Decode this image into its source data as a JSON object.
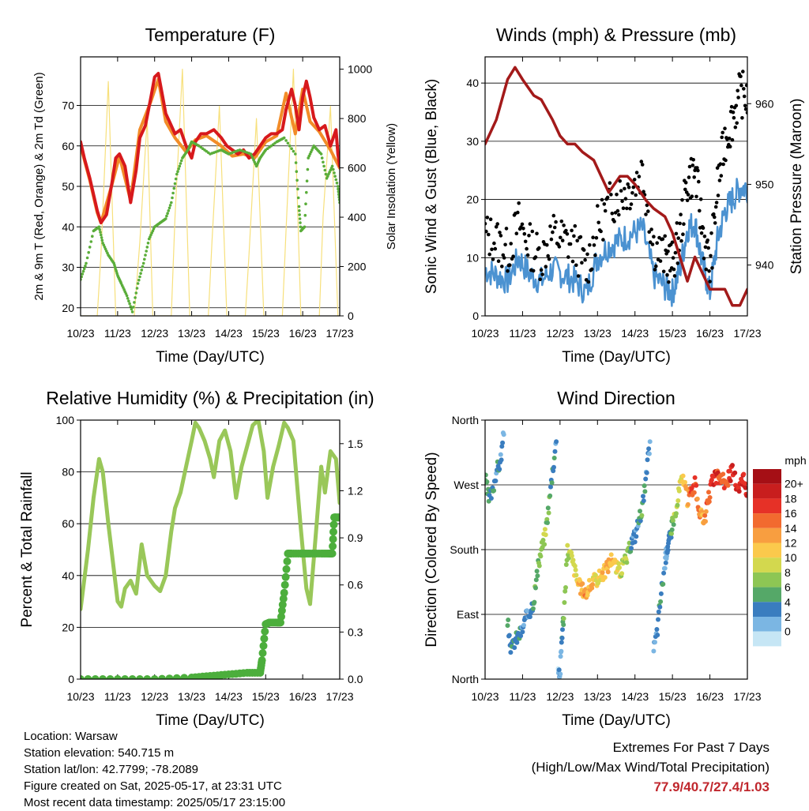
{
  "colors": {
    "t2m": "#d7191c",
    "t9m": "#f28c28",
    "td": "#5aad3a",
    "solar": "#f7e07c",
    "gust": "#000000",
    "wind": "#4b92d1",
    "pressure": "#a31a1a",
    "rh": "#99c759",
    "precip": "#4cae3c",
    "extremes": "#c0272d"
  },
  "info": {
    "location": "Location: Warsaw",
    "elevation": "Station elevation: 540.715 m",
    "latlon": "Station lat/lon: 42.7799; -78.2089",
    "created": "Figure created on Sat, 2025-05-17, at 23:31 UTC",
    "recent": "Most recent data timestamp: 2025/05/17 23:15:00"
  },
  "extremes": {
    "line1": "Extremes For Past 7 Days",
    "line2": "(High/Low/Max Wind/Total Precipitation)",
    "values": "77.9/40.7/27.4/1.03"
  },
  "chart_data": [
    {
      "type": "line",
      "title": "Temperature (F)",
      "xlabel": "Time (Day/UTC)",
      "ylabel": "2m & 9m T (Red, Orange) & 2m Td (Green)",
      "ylabel_right": "Solar Insolation (Yellow)",
      "x_ticks": [
        "10/23",
        "11/23",
        "12/23",
        "13/23",
        "14/23",
        "15/23",
        "16/23",
        "17/23"
      ],
      "ylim": [
        18,
        82
      ],
      "y_ticks": [
        20,
        30,
        40,
        50,
        60,
        70
      ],
      "ylim_right": [
        0,
        1050
      ],
      "y_ticks_right": [
        0,
        200,
        400,
        600,
        800,
        1000
      ],
      "grid": true,
      "series": [
        {
          "name": "2m T",
          "axis": "left",
          "style": "thick",
          "x": [
            0,
            0.1,
            0.25,
            0.45,
            0.55,
            0.7,
            0.85,
            0.95,
            1.05,
            1.2,
            1.35,
            1.5,
            1.6,
            1.75,
            1.9,
            2.0,
            2.1,
            2.2,
            2.3,
            2.4,
            2.55,
            2.7,
            2.85,
            3.0,
            3.1,
            3.25,
            3.4,
            3.6,
            3.8,
            3.95,
            4.1,
            4.25,
            4.4,
            4.55,
            4.7,
            4.85,
            5.0,
            5.15,
            5.3,
            5.45,
            5.55,
            5.7,
            5.8,
            5.9,
            6.0,
            6.1,
            6.2,
            6.3,
            6.45,
            6.6,
            6.75,
            6.9,
            6.95,
            7.0
          ],
          "y": [
            61,
            57,
            52,
            44,
            41,
            43,
            51,
            57,
            58,
            55,
            46,
            54,
            62,
            65,
            72,
            77,
            77.9,
            73,
            68,
            66,
            63,
            64,
            60,
            57,
            61,
            63,
            63,
            64,
            62,
            60,
            59,
            58,
            59,
            57,
            58,
            60,
            62,
            63,
            63,
            64,
            69,
            74,
            70,
            64,
            72,
            76,
            72,
            67,
            64,
            65,
            60,
            64,
            58,
            55
          ]
        },
        {
          "name": "9m T",
          "axis": "left",
          "style": "medium",
          "x": [
            0,
            0.25,
            0.45,
            0.55,
            0.85,
            1.05,
            1.35,
            1.6,
            1.9,
            2.1,
            2.3,
            2.55,
            2.85,
            3.1,
            3.4,
            3.8,
            4.1,
            4.4,
            4.7,
            5.0,
            5.3,
            5.55,
            5.8,
            6.0,
            6.2,
            6.45,
            6.75,
            7.0
          ],
          "y": [
            60,
            51.5,
            43.5,
            41,
            50.5,
            57.5,
            46.5,
            64,
            71,
            76.5,
            66,
            62,
            58.5,
            61.5,
            62.5,
            60,
            57.5,
            58,
            57,
            61,
            62.5,
            73,
            63,
            74,
            66,
            63.5,
            59,
            54.5
          ]
        },
        {
          "name": "2m Td",
          "axis": "left",
          "style": "dots",
          "x": [
            0,
            0.15,
            0.35,
            0.5,
            0.6,
            0.75,
            0.9,
            1.0,
            1.1,
            1.25,
            1.4,
            1.55,
            1.7,
            1.85,
            2.0,
            2.15,
            2.3,
            2.45,
            2.6,
            2.75,
            2.9,
            3.0,
            3.2,
            3.5,
            3.8,
            4.0,
            4.3,
            4.6,
            4.75,
            4.85,
            5.0,
            5.3,
            5.5,
            5.8,
            5.9,
            5.95,
            6.05,
            6.15,
            6.3,
            6.5,
            6.65,
            6.8,
            6.95,
            7.0
          ],
          "y": [
            27,
            31,
            39,
            40,
            36,
            33,
            31,
            28,
            26,
            23,
            19,
            26,
            31,
            37,
            40,
            41,
            42,
            46,
            53,
            57,
            59,
            61,
            60,
            58,
            59,
            58,
            59,
            58,
            55,
            57,
            59,
            61,
            62,
            58,
            45,
            39,
            40,
            57,
            60,
            58,
            52,
            55,
            50,
            46
          ]
        },
        {
          "name": "Solar Insolation",
          "axis": "right",
          "style": "thin",
          "x": [
            0,
            0.45,
            0.55,
            0.75,
            0.95,
            1.45,
            1.6,
            1.8,
            1.95,
            2.45,
            2.55,
            2.75,
            2.95,
            3.45,
            3.55,
            3.75,
            3.95,
            4.45,
            4.55,
            4.75,
            4.95,
            5.45,
            5.55,
            5.75,
            5.95,
            6.45,
            6.55,
            6.75,
            6.95,
            7.0
          ],
          "y": [
            0,
            0,
            250,
            950,
            0,
            0,
            300,
            800,
            0,
            0,
            400,
            1000,
            0,
            0,
            300,
            850,
            0,
            0,
            250,
            800,
            0,
            0,
            350,
            1000,
            0,
            0,
            400,
            850,
            0,
            0
          ]
        }
      ]
    },
    {
      "type": "line",
      "title": "Winds (mph) & Pressure (mb)",
      "xlabel": "Time (Day/UTC)",
      "ylabel": "Sonic Wind & Gust (Blue, Black)",
      "ylabel_right": "Station Pressure (Maroon)",
      "x_ticks": [
        "10/23",
        "11/23",
        "12/23",
        "13/23",
        "14/23",
        "15/23",
        "16/23",
        "17/23"
      ],
      "ylim": [
        0,
        44.5
      ],
      "y_ticks": [
        0,
        10,
        20,
        30,
        40
      ],
      "ylim_right": [
        933.7,
        965.8
      ],
      "y_ticks_right": [
        940,
        950,
        960
      ],
      "grid": true,
      "series": [
        {
          "name": "Gust",
          "axis": "left",
          "style": "dots",
          "x": [
            0,
            0.3,
            0.6,
            0.9,
            1.2,
            1.5,
            1.8,
            2.1,
            2.4,
            2.7,
            3.0,
            3.3,
            3.6,
            3.9,
            4.2,
            4.5,
            4.8,
            5.0,
            5.2,
            5.4,
            5.6,
            5.8,
            6.0,
            6.2,
            6.4,
            6.6,
            6.8,
            7.0
          ],
          "y": [
            14,
            13,
            11,
            16,
            12,
            10,
            14,
            13,
            12,
            8,
            15,
            19,
            21,
            22,
            25,
            12,
            10,
            9,
            14,
            23,
            25,
            15,
            8,
            22,
            30,
            34,
            38,
            38
          ]
        },
        {
          "name": "Sonic Wind",
          "axis": "left",
          "style": "thick",
          "x": [
            0,
            0.3,
            0.6,
            0.9,
            1.2,
            1.5,
            1.8,
            2.1,
            2.4,
            2.7,
            3.0,
            3.3,
            3.6,
            3.9,
            4.2,
            4.5,
            4.8,
            5.0,
            5.2,
            5.4,
            5.6,
            5.8,
            6.0,
            6.2,
            6.4,
            6.6,
            6.8,
            7.0
          ],
          "y": [
            8,
            7,
            6,
            10,
            7,
            6,
            8,
            7,
            6,
            4,
            10,
            12,
            13,
            14,
            15,
            7,
            5,
            4,
            8,
            15,
            16,
            9,
            4,
            13,
            18,
            20,
            22,
            22
          ]
        },
        {
          "name": "Station Pressure",
          "axis": "right",
          "style": "thick",
          "x": [
            0,
            0.3,
            0.6,
            0.8,
            1.0,
            1.3,
            1.5,
            1.8,
            2.0,
            2.2,
            2.4,
            2.6,
            2.9,
            3.1,
            3.3,
            3.6,
            3.8,
            4.0,
            4.3,
            4.5,
            4.8,
            5.0,
            5.2,
            5.4,
            5.6,
            5.8,
            6.0,
            6.2,
            6.4,
            6.6,
            6.8,
            7.0
          ],
          "y": [
            955,
            958,
            963,
            964.5,
            963,
            961,
            960.5,
            958,
            956,
            955,
            955,
            954,
            953,
            951,
            949,
            951,
            951,
            950,
            948,
            947,
            946,
            944,
            941,
            938,
            941,
            939,
            937,
            937,
            937,
            935,
            935,
            937
          ]
        }
      ]
    },
    {
      "type": "line",
      "title": "Relative Humidity (%) & Precipitation (in)",
      "xlabel": "Time (Day/UTC)",
      "ylabel": "Percent & Total Rainfall",
      "x_ticks": [
        "10/23",
        "11/23",
        "12/23",
        "13/23",
        "14/23",
        "15/23",
        "16/23",
        "17/23"
      ],
      "ylim": [
        0,
        100
      ],
      "y_ticks": [
        0,
        20,
        40,
        60,
        80,
        100
      ],
      "ylim_right": [
        0,
        1.65
      ],
      "y_ticks_right": [
        "0.0",
        "0.3",
        "0.6",
        "0.9",
        "1.2",
        "1.5"
      ],
      "grid": true,
      "series": [
        {
          "name": "Relative Humidity",
          "axis": "left",
          "style": "thick",
          "x": [
            0,
            0.2,
            0.35,
            0.5,
            0.6,
            0.75,
            0.9,
            1.0,
            1.1,
            1.2,
            1.35,
            1.5,
            1.65,
            1.8,
            2.0,
            2.15,
            2.3,
            2.45,
            2.55,
            2.7,
            2.85,
            3.0,
            3.1,
            3.2,
            3.35,
            3.5,
            3.6,
            3.75,
            3.9,
            4.05,
            4.2,
            4.35,
            4.5,
            4.65,
            4.8,
            4.95,
            5.05,
            5.2,
            5.35,
            5.5,
            5.6,
            5.75,
            5.85,
            5.95,
            6.1,
            6.2,
            6.35,
            6.5,
            6.6,
            6.75,
            6.9,
            7.0
          ],
          "y": [
            27,
            50,
            70,
            85,
            80,
            60,
            42,
            30,
            28,
            35,
            38,
            33,
            52,
            40,
            36,
            34,
            40,
            57,
            66,
            72,
            82,
            92,
            99,
            97,
            92,
            85,
            78,
            92,
            96,
            88,
            70,
            82,
            90,
            98,
            100,
            88,
            70,
            82,
            90,
            99,
            97,
            92,
            75,
            58,
            35,
            29,
            55,
            82,
            72,
            88,
            85,
            68
          ]
        },
        {
          "name": "Precipitation",
          "axis": "right",
          "style": "dots",
          "x": [
            0,
            1.0,
            2.0,
            3.0,
            3.5,
            4.0,
            4.5,
            4.85,
            4.9,
            5.0,
            5.1,
            5.3,
            5.4,
            5.5,
            5.6,
            5.7,
            6.0,
            6.2,
            6.5,
            6.7,
            6.8,
            6.85,
            6.9,
            7.0
          ],
          "y": [
            0.0,
            0.0,
            0.0,
            0.01,
            0.02,
            0.03,
            0.04,
            0.04,
            0.12,
            0.35,
            0.36,
            0.36,
            0.36,
            0.55,
            0.8,
            0.8,
            0.8,
            0.8,
            0.8,
            0.8,
            0.8,
            1.03,
            1.03,
            1.03
          ]
        }
      ]
    },
    {
      "type": "scatter",
      "title": "Wind Direction",
      "xlabel": "Time (Day/UTC)",
      "ylabel": "Direction (Colored By Speed)",
      "x_ticks": [
        "10/23",
        "11/23",
        "12/23",
        "13/23",
        "14/23",
        "15/23",
        "16/23",
        "17/23"
      ],
      "ylim": [
        0,
        360
      ],
      "y_tick_values": [
        0,
        90,
        180,
        270,
        360
      ],
      "y_tick_labels": [
        "North",
        "East",
        "South",
        "West",
        "North"
      ],
      "grid": true,
      "colorbar": {
        "title": "mph",
        "labels": [
          "20+",
          "18",
          "16",
          "14",
          "12",
          "10",
          "8",
          "6",
          "4",
          "2",
          "0"
        ],
        "colors": [
          "#a50f15",
          "#c81e1e",
          "#e63127",
          "#f26a2f",
          "#f89e40",
          "#fbc94c",
          "#d3d84e",
          "#8dc654",
          "#55a868",
          "#3a7dbf",
          "#7bb6e3",
          "#c6e6f5"
        ]
      },
      "x": [
        0,
        0.1,
        0.2,
        0.3,
        0.4,
        0.5,
        0.6,
        0.7,
        0.8,
        0.9,
        1.0,
        1.1,
        1.2,
        1.3,
        1.4,
        1.5,
        1.6,
        1.7,
        1.8,
        1.9,
        1.95,
        2.0,
        2.05,
        2.1,
        2.2,
        2.3,
        2.4,
        2.5,
        2.6,
        2.7,
        2.8,
        2.9,
        3.0,
        3.1,
        3.2,
        3.3,
        3.4,
        3.5,
        3.6,
        3.7,
        3.8,
        3.9,
        4.0,
        4.1,
        4.2,
        4.3,
        4.4,
        4.5,
        4.6,
        4.7,
        4.8,
        4.85,
        4.9,
        4.95,
        5.0,
        5.1,
        5.2,
        5.3,
        5.4,
        5.5,
        5.6,
        5.7,
        5.8,
        5.9,
        6.0,
        6.1,
        6.2,
        6.3,
        6.4,
        6.5,
        6.6,
        6.7,
        6.8,
        6.9,
        7.0
      ],
      "y": [
        280,
        250,
        260,
        290,
        300,
        340,
        80,
        40,
        55,
        60,
        70,
        85,
        95,
        110,
        150,
        180,
        200,
        240,
        290,
        330,
        20,
        5,
        60,
        90,
        180,
        170,
        150,
        130,
        125,
        120,
        130,
        135,
        140,
        145,
        150,
        160,
        170,
        155,
        150,
        160,
        170,
        190,
        200,
        220,
        240,
        280,
        330,
        40,
        70,
        120,
        160,
        180,
        190,
        200,
        220,
        230,
        270,
        280,
        250,
        260,
        270,
        240,
        220,
        230,
        260,
        280,
        280,
        280,
        270,
        280,
        290,
        270,
        270,
        280,
        260
      ],
      "speed": [
        8,
        7,
        6,
        5,
        5,
        3,
        5,
        6,
        5,
        6,
        4,
        4,
        6,
        7,
        8,
        9,
        9,
        8,
        6,
        4,
        3,
        4,
        5,
        8,
        10,
        11,
        12,
        13,
        14,
        15,
        14,
        13,
        12,
        13,
        14,
        15,
        13,
        12,
        11,
        10,
        9,
        5,
        4,
        5,
        7,
        5,
        3,
        4,
        5,
        6,
        5,
        4,
        5,
        6,
        8,
        10,
        11,
        13,
        15,
        17,
        18,
        16,
        14,
        17,
        18,
        20,
        19,
        18,
        17,
        18,
        20,
        20,
        21,
        20,
        20
      ]
    }
  ]
}
